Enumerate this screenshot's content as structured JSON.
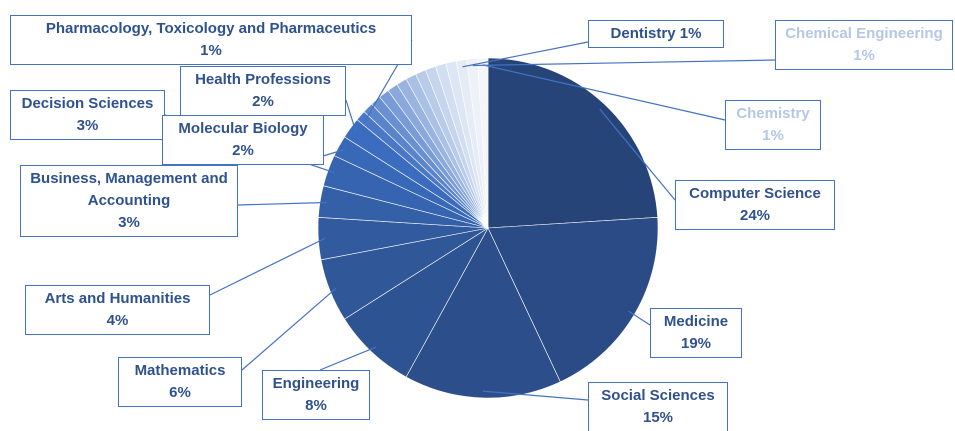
{
  "chart_data": {
    "type": "pie",
    "categories": [
      "Computer Science",
      "Medicine",
      "Social Sciences",
      "Engineering",
      "Mathematics",
      "Arts and Humanities",
      "Business, Management and Accounting",
      "Decision Sciences",
      "Molecular Biology",
      "Health Professions",
      "Pharmacology, Toxicology and Pharmaceutics",
      null,
      null,
      null,
      null,
      null,
      null,
      null,
      null,
      null,
      null,
      "Dentistry",
      "Chemical Engineering",
      "Chemistry"
    ],
    "values": [
      24,
      19,
      15,
      8,
      6,
      4,
      3,
      3,
      2,
      2,
      1,
      1,
      1,
      1,
      1,
      1,
      1,
      1,
      1,
      1,
      1,
      1,
      1,
      1
    ],
    "value_labels": [
      "24%",
      "19%",
      "15%",
      "8%",
      "6%",
      "4%",
      "3%",
      "3%",
      "2%",
      "2%",
      "1%",
      null,
      null,
      null,
      null,
      null,
      null,
      null,
      null,
      null,
      null,
      "1%",
      "1%",
      "1%"
    ],
    "colors": [
      "#264478",
      "#2a4b85",
      "#2c4f8c",
      "#2e5392",
      "#305798",
      "#325b9f",
      "#3460a8",
      "#3664b0",
      "#3868b8",
      "#3b6cbf",
      "#4a78c7",
      "#5a84cc",
      "#6a90d1",
      "#7a9cd6",
      "#8aa8db",
      "#9ab4e0",
      "#aac0e5",
      "#b8cbe9",
      "#c6d5ed",
      "#d2def1",
      "#dde6f4",
      "#e6ecf6",
      "#edf1f8",
      "#f3f6fb"
    ]
  }
}
